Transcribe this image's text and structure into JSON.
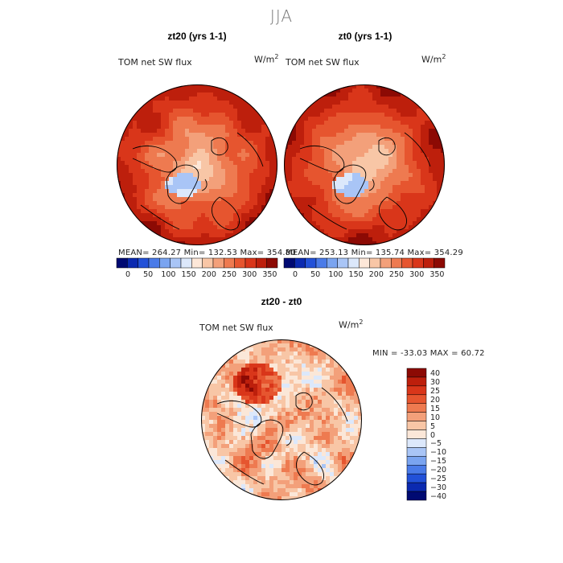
{
  "figure": {
    "title": "JJA",
    "variable": "TOM net SW flux",
    "units_base": "W/m",
    "units_exp": "2"
  },
  "colors": {
    "seq_scale": [
      "#000a72",
      "#0b2ab0",
      "#2251d8",
      "#4a7be8",
      "#7aa4f0",
      "#a9c5f6",
      "#dce8fb",
      "#fde7d8",
      "#f8c6a6",
      "#f3a07a",
      "#ee7a50",
      "#e6552f",
      "#d9361a",
      "#bd1f0c",
      "#8c0a04"
    ],
    "div_scale": [
      "#000a72",
      "#0b2ab0",
      "#2251d8",
      "#4a7be8",
      "#7aa4f0",
      "#a9c5f6",
      "#dce8fb",
      "#fbe7d8",
      "#f8c6a6",
      "#f3a07a",
      "#ee7a50",
      "#e6552f",
      "#d9361a",
      "#bd1f0c",
      "#8c0a04"
    ]
  },
  "chart_data": [
    {
      "type": "polar-contour-map",
      "title": "zt20 (yrs 1-1)",
      "subtitle": "TOM net SW flux",
      "units": "W/m2",
      "stats": {
        "mean": 264.27,
        "min": 132.53,
        "max": 354.8
      },
      "stats_text": "MEAN= 264.27   Min= 132.53   Max= 354.80",
      "colorbar": {
        "orientation": "horizontal",
        "tick_labels": [
          "0",
          "50",
          "100",
          "150",
          "200",
          "250",
          "300",
          "350"
        ]
      }
    },
    {
      "type": "polar-contour-map",
      "title": "zt0 (yrs 1-1)",
      "subtitle": "TOM net SW flux",
      "units": "W/m2",
      "stats": {
        "mean": 253.13,
        "min": 135.74,
        "max": 354.29
      },
      "stats_text": "MEAN= 253.13   Min= 135.74   Max= 354.29",
      "colorbar": {
        "orientation": "horizontal",
        "tick_labels": [
          "0",
          "50",
          "100",
          "150",
          "200",
          "250",
          "300",
          "350"
        ]
      }
    },
    {
      "type": "polar-contour-map",
      "title": "zt20 - zt0",
      "subtitle": "TOM net SW flux",
      "units": "W/m2",
      "stats": {
        "min": -33.03,
        "max": 60.72
      },
      "stats_text": "MIN = -33.03 MAX =  60.72",
      "colorbar": {
        "orientation": "vertical",
        "tick_labels": [
          "40",
          "30",
          "25",
          "20",
          "15",
          "10",
          "5",
          "0",
          "-5",
          "-10",
          "-15",
          "-20",
          "-25",
          "-30",
          "-40"
        ]
      }
    }
  ]
}
